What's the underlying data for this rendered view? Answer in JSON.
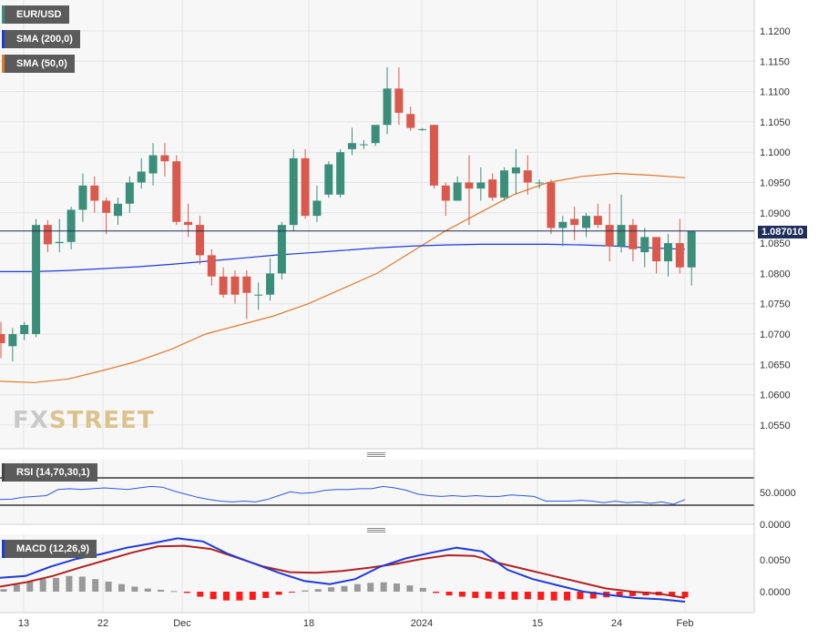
{
  "legends": {
    "pair": "EUR/USD",
    "sma200": "SMA (200,0)",
    "sma50": "SMA (50,0)",
    "rsi": "RSI (14,70,30,1)",
    "macd": "MACD (12,26,9)"
  },
  "watermark": {
    "part1": "FX",
    "part2": "STREET"
  },
  "price_tag": "1.087010",
  "x_labels": [
    "13",
    "22",
    "Dec",
    "18",
    "2024",
    "15",
    "24",
    "Feb"
  ],
  "y_ticks": [
    "1.1200",
    "1.1150",
    "1.1100",
    "1.1050",
    "1.1000",
    "1.0950",
    "1.0900",
    "1.0850",
    "1.0800",
    "1.0750",
    "1.0700",
    "1.0650",
    "1.0600",
    "1.0550"
  ],
  "rsi_ticks": [
    "50.0000",
    "0.0000"
  ],
  "macd_ticks": [
    "0.0050",
    "0.0000"
  ],
  "colors": {
    "up": "#3b8f7a",
    "down": "#d9594c",
    "sma200": "#1f3bd6",
    "sma50": "#e07a2a",
    "macd": "#1f3bd6",
    "signal": "#b22222",
    "hist_pos": "#999999",
    "hist_neg": "#ff1a1a",
    "rsi": "#2d5bd6"
  },
  "chart_data": [
    {
      "type": "candlestick",
      "title": "EUR/USD",
      "ylim": [
        1.0505,
        1.1255
      ],
      "candles": [
        {
          "date": "Nov 10",
          "o": 1.07,
          "h": 1.072,
          "l": 1.066,
          "c": 1.0685
        },
        {
          "date": "Nov 13",
          "o": 1.068,
          "h": 1.071,
          "l": 1.0655,
          "c": 1.07
        },
        {
          "date": "Nov 14",
          "o": 1.07,
          "h": 1.072,
          "l": 1.069,
          "c": 1.0715
        },
        {
          "date": "Nov 15",
          "o": 1.07,
          "h": 1.089,
          "l": 1.0695,
          "c": 1.088
        },
        {
          "date": "Nov 16",
          "o": 1.088,
          "h": 1.0888,
          "l": 1.0835,
          "c": 1.0848
        },
        {
          "date": "Nov 17",
          "o": 1.085,
          "h": 1.089,
          "l": 1.0835,
          "c": 1.0852
        },
        {
          "date": "Nov 20",
          "o": 1.0852,
          "h": 1.091,
          "l": 1.084,
          "c": 1.0905
        },
        {
          "date": "Nov 21",
          "o": 1.0905,
          "h": 1.0965,
          "l": 1.0885,
          "c": 1.0945
        },
        {
          "date": "Nov 22",
          "o": 1.0945,
          "h": 1.096,
          "l": 1.09,
          "c": 1.092
        },
        {
          "date": "Nov 23",
          "o": 1.092,
          "h": 1.0925,
          "l": 1.0865,
          "c": 1.09
        },
        {
          "date": "Nov 24",
          "o": 1.0895,
          "h": 1.0925,
          "l": 1.088,
          "c": 1.0915
        },
        {
          "date": "Nov 27",
          "o": 1.0915,
          "h": 1.096,
          "l": 1.09,
          "c": 1.095
        },
        {
          "date": "Nov 28",
          "o": 1.095,
          "h": 1.099,
          "l": 1.094,
          "c": 1.0968
        },
        {
          "date": "Nov 29",
          "o": 1.0965,
          "h": 1.1015,
          "l": 1.0945,
          "c": 1.0995
        },
        {
          "date": "Nov 30",
          "o": 1.0995,
          "h": 1.1015,
          "l": 1.096,
          "c": 1.0985
        },
        {
          "date": "Dec 1",
          "o": 1.0985,
          "h": 1.0995,
          "l": 1.088,
          "c": 1.0885
        },
        {
          "date": "Dec 4",
          "o": 1.0885,
          "h": 1.0915,
          "l": 1.086,
          "c": 1.088
        },
        {
          "date": "Dec 5",
          "o": 1.088,
          "h": 1.0895,
          "l": 1.0815,
          "c": 1.083
        },
        {
          "date": "Dec 6",
          "o": 1.083,
          "h": 1.084,
          "l": 1.078,
          "c": 1.0795
        },
        {
          "date": "Dec 7",
          "o": 1.0795,
          "h": 1.081,
          "l": 1.076,
          "c": 1.0765
        },
        {
          "date": "Dec 8",
          "o": 1.0795,
          "h": 1.0805,
          "l": 1.075,
          "c": 1.0765
        },
        {
          "date": "Dec 11",
          "o": 1.0795,
          "h": 1.0805,
          "l": 1.0725,
          "c": 1.0768
        },
        {
          "date": "Dec 12",
          "o": 1.0765,
          "h": 1.0785,
          "l": 1.074,
          "c": 1.0765
        },
        {
          "date": "Dec 13",
          "o": 1.0765,
          "h": 1.0825,
          "l": 1.0755,
          "c": 1.08
        },
        {
          "date": "Dec 14",
          "o": 1.08,
          "h": 1.0885,
          "l": 1.079,
          "c": 1.088
        },
        {
          "date": "Dec 15",
          "o": 1.088,
          "h": 1.1005,
          "l": 1.087,
          "c": 1.099
        },
        {
          "date": "Dec 18",
          "o": 1.099,
          "h": 1.1005,
          "l": 1.089,
          "c": 1.0895
        },
        {
          "date": "Dec 19",
          "o": 1.0895,
          "h": 1.0945,
          "l": 1.0885,
          "c": 1.092
        },
        {
          "date": "Dec 20",
          "o": 1.093,
          "h": 1.0985,
          "l": 1.0925,
          "c": 1.098
        },
        {
          "date": "Dec 21",
          "o": 1.093,
          "h": 1.1005,
          "l": 1.0925,
          "c": 1.1
        },
        {
          "date": "Dec 22",
          "o": 1.1005,
          "h": 1.104,
          "l": 1.0995,
          "c": 1.1015
        },
        {
          "date": "Dec 26",
          "o": 1.1013,
          "h": 1.102,
          "l": 1.1005,
          "c": 1.1013
        },
        {
          "date": "Dec 27",
          "o": 1.1015,
          "h": 1.104,
          "l": 1.101,
          "c": 1.1045
        },
        {
          "date": "Dec 28",
          "o": 1.1045,
          "h": 1.114,
          "l": 1.103,
          "c": 1.1105
        },
        {
          "date": "Dec 29",
          "o": 1.1105,
          "h": 1.114,
          "l": 1.1045,
          "c": 1.1065
        },
        {
          "date": "Jan 1",
          "o": 1.1063,
          "h": 1.1075,
          "l": 1.1035,
          "c": 1.104
        },
        {
          "date": "Jan 2",
          "o": 1.1038,
          "h": 1.104,
          "l": 1.1035,
          "c": 1.1038
        },
        {
          "date": "Jan 3",
          "o": 1.1045,
          "h": 1.1045,
          "l": 1.094,
          "c": 1.0945
        },
        {
          "date": "Jan 4",
          "o": 1.0945,
          "h": 1.095,
          "l": 1.0895,
          "c": 1.092
        },
        {
          "date": "Jan 5",
          "o": 1.092,
          "h": 1.096,
          "l": 1.092,
          "c": 1.095
        },
        {
          "date": "Jan 8",
          "o": 1.095,
          "h": 1.0995,
          "l": 1.088,
          "c": 1.094
        },
        {
          "date": "Jan 9",
          "o": 1.094,
          "h": 1.0975,
          "l": 1.092,
          "c": 1.095
        },
        {
          "date": "Jan 10",
          "o": 1.0955,
          "h": 1.0965,
          "l": 1.092,
          "c": 1.0925
        },
        {
          "date": "Jan 11",
          "o": 1.0925,
          "h": 1.0975,
          "l": 1.092,
          "c": 1.097
        },
        {
          "date": "Jan 12",
          "o": 1.0965,
          "h": 1.1005,
          "l": 1.093,
          "c": 1.0975
        },
        {
          "date": "Jan 15",
          "o": 1.097,
          "h": 1.0995,
          "l": 1.093,
          "c": 1.095
        },
        {
          "date": "Jan 16",
          "o": 1.095,
          "h": 1.0955,
          "l": 1.094,
          "c": 1.095
        },
        {
          "date": "Jan 17",
          "o": 1.095,
          "h": 1.0955,
          "l": 1.0865,
          "c": 1.0875
        },
        {
          "date": "Jan 18",
          "o": 1.0875,
          "h": 1.0895,
          "l": 1.0845,
          "c": 1.0885
        },
        {
          "date": "Jan 19",
          "o": 1.089,
          "h": 1.091,
          "l": 1.0855,
          "c": 1.088
        },
        {
          "date": "Jan 22",
          "o": 1.0875,
          "h": 1.09,
          "l": 1.086,
          "c": 1.0895
        },
        {
          "date": "Jan 23",
          "o": 1.0895,
          "h": 1.0915,
          "l": 1.0875,
          "c": 1.088
        },
        {
          "date": "Jan 24",
          "o": 1.088,
          "h": 1.0915,
          "l": 1.082,
          "c": 1.0845
        },
        {
          "date": "Jan 25",
          "o": 1.0845,
          "h": 1.093,
          "l": 1.0835,
          "c": 1.088
        },
        {
          "date": "Jan 26",
          "o": 1.088,
          "h": 1.089,
          "l": 1.082,
          "c": 1.084
        },
        {
          "date": "Jan 29",
          "o": 1.0835,
          "h": 1.0875,
          "l": 1.081,
          "c": 1.086
        },
        {
          "date": "Jan 30",
          "o": 1.086,
          "h": 1.086,
          "l": 1.08,
          "c": 1.082
        },
        {
          "date": "Jan 31",
          "o": 1.082,
          "h": 1.0865,
          "l": 1.0795,
          "c": 1.085
        },
        {
          "date": "Feb 1",
          "o": 1.085,
          "h": 1.089,
          "l": 1.08,
          "c": 1.081
        },
        {
          "date": "Feb 2",
          "o": 1.081,
          "h": 1.087,
          "l": 1.078,
          "c": 1.087
        }
      ],
      "sma200": [
        1.0803,
        1.0803,
        1.0805,
        1.0808,
        1.0811,
        1.0815,
        1.082,
        1.0825,
        1.083,
        1.0834,
        1.0838,
        1.0842,
        1.0845,
        1.0847,
        1.0848,
        1.0848,
        1.0848,
        1.0847,
        1.0845,
        1.0842,
        1.084
      ],
      "sma50": [
        1.0622,
        1.062,
        1.0626,
        1.064,
        1.0655,
        1.0675,
        1.07,
        1.0715,
        1.073,
        1.075,
        1.0775,
        1.08,
        1.0835,
        1.087,
        1.09,
        1.093,
        1.095,
        1.096,
        1.0965,
        1.0962,
        1.0958
      ],
      "price_line": 1.08701
    },
    {
      "type": "line",
      "title": "RSI (14,70,30,1)",
      "levels": [
        70,
        30
      ],
      "values": [
        47,
        47.5,
        50,
        51,
        52,
        60,
        61,
        60,
        61,
        62,
        61,
        60,
        62,
        64,
        63,
        58,
        54,
        50,
        47,
        45,
        44,
        45,
        44,
        47,
        52,
        57,
        55,
        56,
        59,
        60,
        60,
        61,
        61,
        64,
        62,
        59,
        54,
        52,
        51,
        52,
        51,
        52,
        51,
        51,
        53,
        52,
        51,
        45,
        45,
        45,
        46,
        45,
        43,
        45,
        43,
        44,
        42,
        44,
        41,
        47
      ]
    },
    {
      "type": "bar",
      "title": "MACD (12,26,9)",
      "ylim": [
        -0.0025,
        0.0085
      ],
      "histogram": [
        0.0004,
        0.0011,
        0.0016,
        0.002,
        0.0022,
        0.0025,
        0.0024,
        0.002,
        0.0016,
        0.0012,
        0.0008,
        0.0005,
        0.0003,
        0.0001,
        -0.0002,
        -0.0008,
        -0.0012,
        -0.0014,
        -0.0014,
        -0.0013,
        -0.001,
        -0.0005,
        -0.0001,
        0.0002,
        0.0004,
        0.0007,
        0.0009,
        0.0012,
        0.0014,
        0.0015,
        0.0013,
        0.001,
        0.0006,
        -0.0002,
        -0.0006,
        -0.0008,
        -0.001,
        -0.0011,
        -0.0012,
        -0.0013,
        -0.0012,
        -0.0013,
        -0.0014,
        -0.0014,
        -0.0012,
        -0.0011,
        -0.0009,
        -0.0008,
        -0.0007,
        -0.0006,
        -0.0006,
        -0.0007,
        -0.0009
      ],
      "macd": [
        0.0022,
        0.0025,
        0.004,
        0.0052,
        0.006,
        0.007,
        0.0077,
        0.0085,
        0.008,
        0.006,
        0.0045,
        0.003,
        0.0017,
        0.0012,
        0.002,
        0.004,
        0.0053,
        0.0062,
        0.007,
        0.0064,
        0.0035,
        0.002,
        0.001,
        0.0,
        -0.0005,
        -0.001,
        -0.0012,
        -0.0016
      ],
      "signal": [
        0.0008,
        0.0015,
        0.0025,
        0.0038,
        0.005,
        0.0062,
        0.0072,
        0.0073,
        0.0068,
        0.0054,
        0.004,
        0.0031,
        0.003,
        0.0033,
        0.0038,
        0.0044,
        0.0052,
        0.0058,
        0.0057,
        0.0045,
        0.0035,
        0.0025,
        0.0015,
        0.0005,
        0.0,
        -0.0003,
        -0.001
      ]
    }
  ]
}
